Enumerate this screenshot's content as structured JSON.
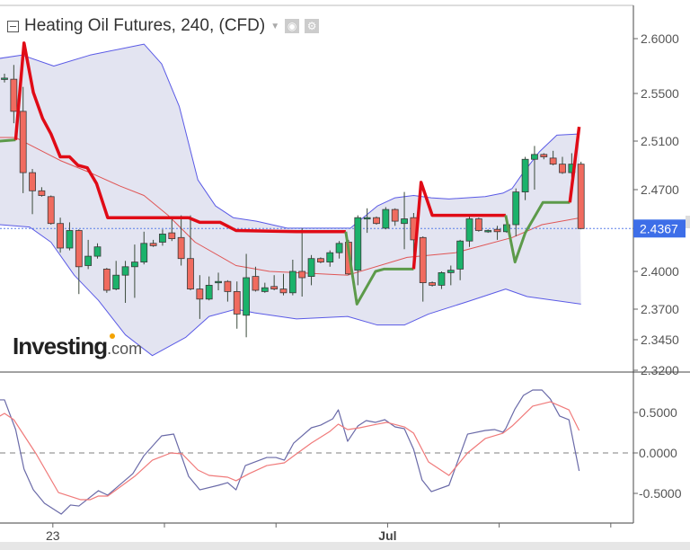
{
  "header": {
    "title": "Heating Oil Futures, 240, (CFD)",
    "icons": [
      "collapse-icon",
      "dropdown-caret-icon",
      "eye-icon",
      "gear-icon"
    ]
  },
  "logo": {
    "text": "Investing",
    "suffix": ".com"
  },
  "colors": {
    "up": "#1bb26b",
    "down": "#f06b5f",
    "band": "#5a5ae6",
    "band_fill": "#e3e4f1",
    "basis": "#e05555",
    "trend_down": "#e00b16",
    "trend_up": "#5c9a4a",
    "osc_main": "#6a6aa8",
    "osc_signal": "#f07a7a",
    "last_price_bg": "#3d6ee8"
  },
  "chart_data": [
    {
      "type": "candlestick",
      "title": "Heating Oil Futures, 240, (CFD)",
      "y_ticks": [
        "2.6000",
        "2.5500",
        "2.5100",
        "2.4700",
        "2.4000",
        "2.3700",
        "2.3450",
        "2.3200"
      ],
      "x_ticks": [
        "23",
        "",
        "",
        "Jul",
        "",
        ""
      ],
      "last_price": "2.4367",
      "grid": false,
      "candles_ohlc": [
        [
          2.564,
          2.568,
          2.56,
          2.564
        ],
        [
          2.563,
          2.576,
          2.525,
          2.535
        ],
        [
          2.535,
          2.556,
          2.467,
          2.484
        ],
        [
          2.484,
          2.487,
          2.449,
          2.469
        ],
        [
          2.469,
          2.472,
          2.464,
          2.465
        ],
        [
          2.464,
          2.465,
          2.44,
          2.441
        ],
        [
          2.441,
          2.446,
          2.416,
          2.42
        ],
        [
          2.42,
          2.442,
          2.418,
          2.435
        ],
        [
          2.435,
          2.436,
          2.382,
          2.404
        ],
        [
          2.405,
          2.427,
          2.402,
          2.413
        ],
        [
          2.413,
          2.424,
          2.411,
          2.421
        ],
        [
          2.402,
          2.403,
          2.383,
          2.385
        ],
        [
          2.386,
          2.409,
          2.385,
          2.397
        ],
        [
          2.397,
          2.409,
          2.375,
          2.404
        ],
        [
          2.404,
          2.423,
          2.379,
          2.408
        ],
        [
          2.408,
          2.434,
          2.406,
          2.424
        ],
        [
          2.424,
          2.427,
          2.421,
          2.422
        ],
        [
          2.425,
          2.436,
          2.422,
          2.432
        ],
        [
          2.433,
          2.446,
          2.426,
          2.428
        ],
        [
          2.429,
          2.448,
          2.405,
          2.411
        ],
        [
          2.411,
          2.448,
          2.385,
          2.386
        ],
        [
          2.386,
          2.397,
          2.362,
          2.378
        ],
        [
          2.378,
          2.396,
          2.377,
          2.389
        ],
        [
          2.391,
          2.399,
          2.385,
          2.392
        ],
        [
          2.392,
          2.393,
          2.376,
          2.384
        ],
        [
          2.384,
          2.392,
          2.354,
          2.366
        ],
        [
          2.365,
          2.415,
          2.347,
          2.395
        ],
        [
          2.396,
          2.404,
          2.384,
          2.385
        ],
        [
          2.384,
          2.391,
          2.383,
          2.387
        ],
        [
          2.388,
          2.397,
          2.385,
          2.386
        ],
        [
          2.386,
          2.398,
          2.381,
          2.383
        ],
        [
          2.383,
          2.41,
          2.381,
          2.4
        ],
        [
          2.4,
          2.437,
          2.38,
          2.395
        ],
        [
          2.396,
          2.414,
          2.389,
          2.411
        ],
        [
          2.411,
          2.412,
          2.407,
          2.408
        ],
        [
          2.408,
          2.418,
          2.404,
          2.416
        ],
        [
          2.416,
          2.426,
          2.411,
          2.424
        ],
        [
          2.425,
          2.427,
          2.397,
          2.398
        ],
        [
          2.401,
          2.448,
          2.389,
          2.446
        ],
        [
          2.445,
          2.454,
          2.433,
          2.446
        ],
        [
          2.446,
          2.447,
          2.44,
          2.441
        ],
        [
          2.437,
          2.455,
          2.436,
          2.453
        ],
        [
          2.453,
          2.454,
          2.439,
          2.443
        ],
        [
          2.441,
          2.468,
          2.419,
          2.445
        ],
        [
          2.446,
          2.45,
          2.405,
          2.427
        ],
        [
          2.429,
          2.43,
          2.376,
          2.391
        ],
        [
          2.391,
          2.392,
          2.388,
          2.389
        ],
        [
          2.389,
          2.4,
          2.386,
          2.399
        ],
        [
          2.399,
          2.405,
          2.389,
          2.401
        ],
        [
          2.402,
          2.427,
          2.393,
          2.426
        ],
        [
          2.426,
          2.449,
          2.421,
          2.445
        ],
        [
          2.445,
          2.446,
          2.434,
          2.435
        ],
        [
          2.434,
          2.436,
          2.433,
          2.435
        ],
        [
          2.436,
          2.439,
          2.427,
          2.434
        ],
        [
          2.434,
          2.441,
          2.433,
          2.44
        ],
        [
          2.44,
          2.471,
          2.43,
          2.468
        ],
        [
          2.468,
          2.497,
          2.461,
          2.495
        ],
        [
          2.495,
          2.506,
          2.47,
          2.499
        ],
        [
          2.499,
          2.5,
          2.495,
          2.497
        ],
        [
          2.496,
          2.502,
          2.49,
          2.491
        ],
        [
          2.491,
          2.497,
          2.483,
          2.484
        ],
        [
          2.484,
          2.5,
          2.48,
          2.491
        ],
        [
          2.491,
          2.493,
          2.436,
          2.4367
        ]
      ],
      "bollinger_upper": [
        [
          -0.5,
          2.582
        ],
        [
          1.9,
          2.585
        ],
        [
          5.3,
          2.575
        ],
        [
          9.2,
          2.585
        ],
        [
          15,
          2.595
        ],
        [
          16.9,
          2.577
        ],
        [
          18.8,
          2.539
        ],
        [
          20.8,
          2.478
        ],
        [
          22.7,
          2.456
        ],
        [
          24.6,
          2.446
        ],
        [
          27.1,
          2.443
        ],
        [
          30.4,
          2.437
        ],
        [
          37.2,
          2.437
        ],
        [
          40.1,
          2.456
        ],
        [
          42,
          2.463
        ],
        [
          44,
          2.465
        ],
        [
          45.9,
          2.463
        ],
        [
          47.8,
          2.462
        ],
        [
          51.7,
          2.464
        ],
        [
          53.6,
          2.467
        ],
        [
          54.6,
          2.471
        ],
        [
          55.6,
          2.482
        ],
        [
          57.5,
          2.501
        ],
        [
          59.4,
          2.515
        ],
        [
          61.8,
          2.516
        ]
      ],
      "bollinger_lower": [
        [
          -0.5,
          2.44
        ],
        [
          2.7,
          2.438
        ],
        [
          5,
          2.425
        ],
        [
          7.5,
          2.397
        ],
        [
          10.1,
          2.377
        ],
        [
          13,
          2.349
        ],
        [
          15.9,
          2.332
        ],
        [
          19.5,
          2.347
        ],
        [
          22,
          2.364
        ],
        [
          24.9,
          2.37
        ],
        [
          26.9,
          2.367
        ],
        [
          31.4,
          2.362
        ],
        [
          36.9,
          2.364
        ],
        [
          40.1,
          2.357
        ],
        [
          43,
          2.357
        ],
        [
          45.6,
          2.366
        ],
        [
          49.8,
          2.376
        ],
        [
          53.9,
          2.386
        ],
        [
          56.2,
          2.38
        ],
        [
          62,
          2.374
        ]
      ],
      "bollinger_basis": [
        [
          -0.5,
          2.513
        ],
        [
          1.2,
          2.513
        ],
        [
          2.7,
          2.507
        ],
        [
          6,
          2.494
        ],
        [
          9.2,
          2.484
        ],
        [
          12.4,
          2.473
        ],
        [
          15,
          2.465
        ],
        [
          17.6,
          2.448
        ],
        [
          20.5,
          2.425
        ],
        [
          24.9,
          2.405
        ],
        [
          28.5,
          2.4
        ],
        [
          31.4,
          2.399
        ],
        [
          36.9,
          2.397
        ],
        [
          43.3,
          2.412
        ],
        [
          48.5,
          2.416
        ],
        [
          54.6,
          2.429
        ],
        [
          57.8,
          2.44
        ],
        [
          62,
          2.446
        ]
      ],
      "trend_segments": [
        {
          "dir": "up",
          "points": [
            [
              -0.5,
              2.51
            ],
            [
              1.2,
              2.511
            ]
          ]
        },
        {
          "dir": "down",
          "points": [
            [
              1.2,
              2.511
            ],
            [
              2.1,
              2.596
            ],
            [
              3.1,
              2.551
            ],
            [
              4.1,
              2.529
            ],
            [
              5,
              2.516
            ],
            [
              6,
              2.497
            ],
            [
              7,
              2.497
            ],
            [
              7.9,
              2.49
            ],
            [
              8.9,
              2.488
            ],
            [
              9.9,
              2.475
            ],
            [
              11.1,
              2.446
            ],
            [
              19.8,
              2.446
            ],
            [
              21,
              2.442
            ],
            [
              23.2,
              2.442
            ],
            [
              24.9,
              2.435
            ],
            [
              31.4,
              2.434
            ],
            [
              36.7,
              2.434
            ]
          ]
        },
        {
          "dir": "up",
          "points": [
            [
              36.7,
              2.434
            ],
            [
              37.9,
              2.374
            ],
            [
              39.9,
              2.4
            ],
            [
              40.8,
              2.402
            ],
            [
              44,
              2.402
            ]
          ]
        },
        {
          "dir": "down",
          "points": [
            [
              44,
              2.402
            ],
            [
              44.8,
              2.476
            ],
            [
              46,
              2.448
            ],
            [
              53.9,
              2.448
            ]
          ]
        },
        {
          "dir": "up",
          "points": [
            [
              53.9,
              2.448
            ],
            [
              54.9,
              2.408
            ],
            [
              56,
              2.433
            ],
            [
              57.9,
              2.459
            ],
            [
              60.8,
              2.459
            ]
          ]
        },
        {
          "dir": "down",
          "points": [
            [
              60.8,
              2.459
            ],
            [
              61.8,
              2.522
            ]
          ]
        }
      ]
    },
    {
      "type": "line",
      "y_ticks": [
        "0.5000",
        "0.0000",
        "-0.5000"
      ],
      "ylim": [
        -0.83,
        0.95
      ],
      "zero_line": "dashed",
      "series": [
        {
          "color_key": "osc_main",
          "points": [
            [
              -0.5,
              0.656
            ],
            [
              0,
              0.656
            ],
            [
              1.2,
              0.289
            ],
            [
              2.1,
              -0.2
            ],
            [
              3.1,
              -0.456
            ],
            [
              4.3,
              -0.622
            ],
            [
              6.1,
              -0.756
            ],
            [
              7.1,
              -0.644
            ],
            [
              8,
              -0.656
            ],
            [
              10.1,
              -0.467
            ],
            [
              11.1,
              -0.522
            ],
            [
              13.8,
              -0.256
            ],
            [
              15,
              -0.033
            ],
            [
              16.9,
              0.211
            ],
            [
              18.2,
              0.233
            ],
            [
              19.8,
              -0.289
            ],
            [
              21,
              -0.456
            ],
            [
              23,
              -0.4
            ],
            [
              24,
              -0.367
            ],
            [
              24.9,
              -0.456
            ],
            [
              25.9,
              -0.156
            ],
            [
              28.2,
              -0.056
            ],
            [
              29.2,
              -0.056
            ],
            [
              30.1,
              -0.089
            ],
            [
              31.1,
              0.122
            ],
            [
              33,
              0.311
            ],
            [
              34,
              0.344
            ],
            [
              35.3,
              0.422
            ],
            [
              35.9,
              0.533
            ],
            [
              36.9,
              0.144
            ],
            [
              38,
              0.333
            ],
            [
              38.9,
              0.4
            ],
            [
              39.9,
              0.378
            ],
            [
              40.9,
              0.411
            ],
            [
              42,
              0.322
            ],
            [
              43,
              0.3
            ],
            [
              44,
              0.044
            ],
            [
              44.9,
              -0.333
            ],
            [
              45.9,
              -0.478
            ],
            [
              47.8,
              -0.4
            ],
            [
              49.8,
              0.233
            ],
            [
              51.7,
              0.278
            ],
            [
              52.7,
              0.289
            ],
            [
              53.6,
              0.256
            ],
            [
              53.9,
              0.3
            ],
            [
              54.9,
              0.544
            ],
            [
              55.8,
              0.711
            ],
            [
              56.8,
              0.778
            ],
            [
              57.8,
              0.778
            ],
            [
              58.7,
              0.667
            ],
            [
              59.7,
              0.456
            ],
            [
              60.7,
              0.411
            ],
            [
              61.8,
              -0.222
            ]
          ]
        },
        {
          "color_key": "osc_signal",
          "points": [
            [
              -0.5,
              0.456
            ],
            [
              0,
              0.489
            ],
            [
              1,
              0.411
            ],
            [
              3.4,
              -0.011
            ],
            [
              5.8,
              -0.489
            ],
            [
              8.2,
              -0.578
            ],
            [
              9.2,
              -0.578
            ],
            [
              10.1,
              -0.533
            ],
            [
              11.1,
              -0.533
            ],
            [
              14,
              -0.289
            ],
            [
              15.9,
              -0.089
            ],
            [
              17.9,
              0
            ],
            [
              19.1,
              -0.011
            ],
            [
              20.8,
              -0.211
            ],
            [
              22,
              -0.278
            ],
            [
              24,
              -0.3
            ],
            [
              24.9,
              -0.344
            ],
            [
              26.3,
              -0.256
            ],
            [
              28.2,
              -0.156
            ],
            [
              30.1,
              -0.122
            ],
            [
              31.4,
              -0.011
            ],
            [
              33,
              0.122
            ],
            [
              35,
              0.267
            ],
            [
              35.9,
              0.356
            ],
            [
              36.9,
              0.289
            ],
            [
              38.2,
              0.311
            ],
            [
              40.1,
              0.356
            ],
            [
              41.1,
              0.378
            ],
            [
              43,
              0.322
            ],
            [
              44,
              0.244
            ],
            [
              45.6,
              -0.111
            ],
            [
              47.8,
              -0.278
            ],
            [
              49.8,
              0
            ],
            [
              51.7,
              0.178
            ],
            [
              53.6,
              0.244
            ],
            [
              54.6,
              0.333
            ],
            [
              56.8,
              0.578
            ],
            [
              58.7,
              0.633
            ],
            [
              60.7,
              0.533
            ],
            [
              61.8,
              0.278
            ]
          ]
        }
      ]
    }
  ]
}
